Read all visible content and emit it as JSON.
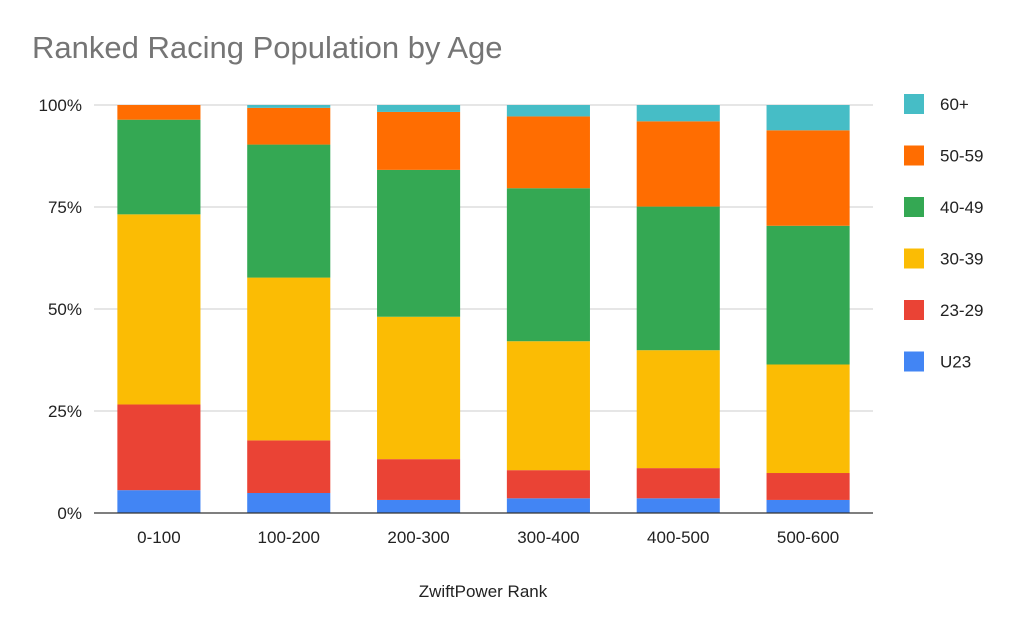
{
  "chart_data": {
    "type": "bar",
    "stacked": "percent",
    "title": "Ranked Racing Population by Age",
    "xlabel": "ZwiftPower Rank",
    "ylabel": "",
    "ylim": [
      0,
      100
    ],
    "yticks": [
      "0%",
      "25%",
      "50%",
      "75%",
      "100%"
    ],
    "grid": true,
    "legend_position": "right",
    "categories": [
      "0-100",
      "100-200",
      "200-300",
      "300-400",
      "400-500",
      "500-600"
    ],
    "series": [
      {
        "name": "U23",
        "color": "#4285f4",
        "values": [
          5.6,
          4.9,
          3.2,
          3.6,
          3.6,
          3.2
        ]
      },
      {
        "name": "23-29",
        "color": "#ea4335",
        "values": [
          21.0,
          12.9,
          10.0,
          6.9,
          7.4,
          6.6
        ]
      },
      {
        "name": "30-39",
        "color": "#fbbc04",
        "values": [
          46.6,
          39.9,
          34.9,
          31.6,
          28.9,
          26.6
        ]
      },
      {
        "name": "40-49",
        "color": "#34a853",
        "values": [
          23.2,
          32.6,
          36.0,
          37.5,
          35.2,
          34.0
        ]
      },
      {
        "name": "50-59",
        "color": "#ff6d01",
        "values": [
          3.6,
          9.0,
          14.2,
          17.6,
          20.9,
          23.4
        ]
      },
      {
        "name": "60+",
        "color": "#46bdc6",
        "values": [
          0.0,
          0.7,
          1.7,
          2.8,
          4.0,
          6.2
        ]
      }
    ]
  }
}
